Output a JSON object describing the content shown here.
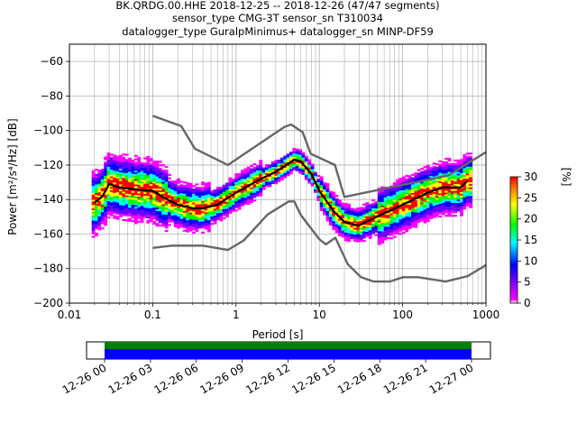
{
  "title_lines": [
    "BK.QRDG.00.HHE   2018-12-25 -- 2018-12-26  (47/47 segments)",
    "sensor_type CMG-3T sensor_sn T310034",
    "datalogger_type GuralpMinimus+ datalogger_sn MINP-DF59"
  ],
  "chart_data": [
    {
      "type": "heatmap",
      "name": "ppsd",
      "title": "BK.QRDG.00.HHE   2018-12-25 -- 2018-12-26  (47/47 segments)",
      "xlabel": "Period [s]",
      "ylabel": "Power [m²/s⁴/Hz] [dB]",
      "xscale": "log",
      "xlim": [
        0.01,
        1000
      ],
      "ylim": [
        -200,
        -50
      ],
      "grid": true,
      "xticks": [
        0.01,
        0.1,
        1,
        10,
        100,
        1000
      ],
      "xtick_labels": [
        "0.01",
        "0.1",
        "1",
        "10",
        "100",
        "1000"
      ],
      "yticks": [
        -200,
        -180,
        -160,
        -140,
        -120,
        -100,
        -80,
        -60
      ],
      "ytick_labels": [
        "−200",
        "−180",
        "−160",
        "−140",
        "−120",
        "−100",
        "−80",
        "−60"
      ],
      "colorbar": {
        "label": "[%]",
        "range": [
          0,
          30
        ],
        "ticks": [
          0,
          5,
          10,
          15,
          20,
          25,
          30
        ],
        "tick_labels": [
          "0",
          "5",
          "10",
          "15",
          "20",
          "25",
          "30"
        ],
        "colors": [
          "#ffffff",
          "#ff00ff",
          "#0000ff",
          "#00ffff",
          "#00ff00",
          "#ffff00",
          "#ff8000",
          "#ff0000"
        ]
      },
      "series": [
        {
          "name": "mean",
          "color": "#000000",
          "x": [
            0.02,
            0.025,
            0.03,
            0.04,
            0.06,
            0.1,
            0.15,
            0.2,
            0.3,
            0.4,
            0.6,
            1,
            2,
            3,
            4,
            5,
            6,
            8,
            10,
            15,
            20,
            30,
            40,
            60,
            100,
            150,
            200,
            300,
            400,
            500,
            600
          ],
          "y": [
            -142,
            -138,
            -131,
            -133,
            -134,
            -135,
            -140,
            -143,
            -145,
            -145,
            -143,
            -136,
            -128,
            -124,
            -120,
            -117,
            -118,
            -125,
            -135,
            -147,
            -153,
            -155,
            -152,
            -148,
            -143,
            -139,
            -136,
            -133,
            -133,
            -133,
            -129
          ]
        },
        {
          "name": "high noise model",
          "color": "#666666",
          "x": [
            0.1,
            0.22,
            0.32,
            0.8,
            3.8,
            4.6,
            6.3,
            7.9,
            15.4,
            20,
            354.8,
            1000
          ],
          "y": [
            -91.5,
            -97.4,
            -110.5,
            -120,
            -98,
            -96.5,
            -101,
            -113.5,
            -120,
            -138.5,
            -126,
            -112.5
          ]
        },
        {
          "name": "low noise model",
          "color": "#666666",
          "x": [
            0.1,
            0.17,
            0.4,
            0.8,
            1.24,
            2.4,
            4.3,
            5,
            6,
            10,
            12,
            15.6,
            21.9,
            31.6,
            45,
            70,
            101,
            154,
            328,
            600,
            1000
          ],
          "y": [
            -168,
            -166.7,
            -166.7,
            -169.2,
            -163.7,
            -148.6,
            -141.1,
            -141.1,
            -149,
            -163,
            -166,
            -162.1,
            -177.5,
            -185,
            -187.5,
            -187.5,
            -185,
            -185,
            -187.5,
            -184.4,
            -178
          ]
        }
      ]
    },
    {
      "type": "timeline",
      "name": "data-coverage",
      "tick_labels": [
        "12-26 00",
        "12-26 03",
        "12-26 06",
        "12-26 09",
        "12-26 12",
        "12-26 15",
        "12-26 18",
        "12-26 21",
        "12-27 00"
      ],
      "series": [
        {
          "name": "coverage-used",
          "color": "#008000",
          "start": "12-26 00",
          "end": "12-27 00"
        },
        {
          "name": "coverage-data",
          "color": "#0000ff",
          "start": "12-26 00",
          "end": "12-27 00"
        }
      ]
    }
  ]
}
